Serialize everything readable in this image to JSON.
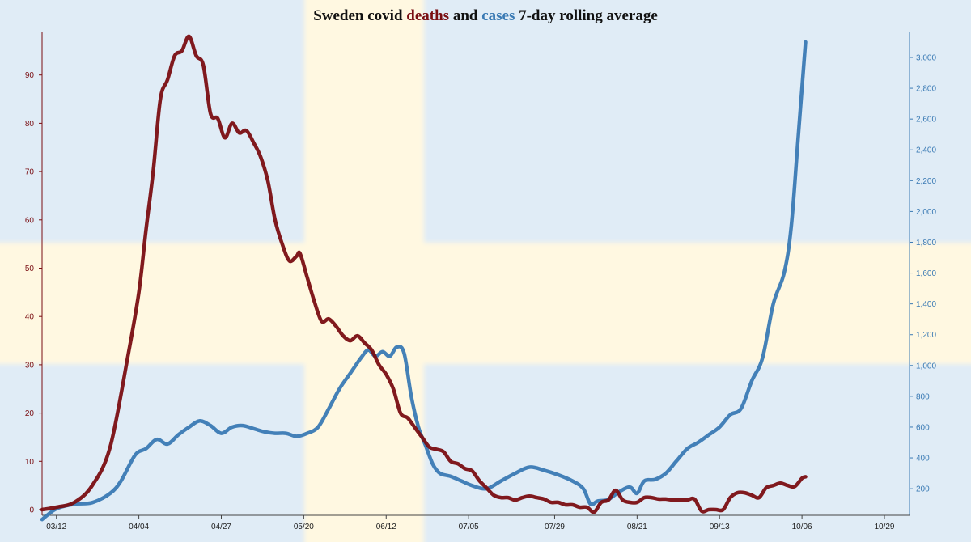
{
  "chart_data": {
    "type": "line",
    "title_parts": {
      "prefix": "Sweden covid ",
      "deaths": "deaths",
      "and": " and ",
      "cases": "cases",
      "suffix": " 7-day rolling average"
    },
    "colors": {
      "deaths": "#7a0e12",
      "cases": "#3a7ab4",
      "flag_blue": "#e0ecf6",
      "flag_yellow": "#fff8e1"
    },
    "background": "Swedish flag",
    "x_tick_labels": [
      "03/12",
      "04/04",
      "04/27",
      "05/20",
      "06/12",
      "07/05",
      "07/29",
      "08/21",
      "09/13",
      "10/06",
      "10/29"
    ],
    "x_tick_day": [
      0,
      23,
      46,
      69,
      92,
      115,
      139,
      162,
      185,
      208,
      231
    ],
    "xlim": [
      -4,
      238
    ],
    "y_left": {
      "ticks": [
        0,
        10,
        20,
        30,
        40,
        50,
        60,
        70,
        80,
        90
      ],
      "ylim": [
        0,
        99
      ]
    },
    "y_right": {
      "ticks": [
        200,
        400,
        600,
        800,
        1000,
        1200,
        1400,
        1600,
        1800,
        2000,
        2200,
        2400,
        2600,
        2800,
        3000
      ],
      "tick_labels": [
        "200",
        "400",
        "600",
        "800",
        "1,000",
        "1,200",
        "1,400",
        "1,600",
        "1,800",
        "2,000",
        "2,200",
        "2,400",
        "2,600",
        "2,800",
        "3,000"
      ],
      "ylim": [
        0,
        3200
      ]
    },
    "series": [
      {
        "axis": "left",
        "points": [
          [
            -4,
            0
          ],
          [
            0,
            0.5
          ],
          [
            5,
            1.5
          ],
          [
            10,
            5
          ],
          [
            15,
            13
          ],
          [
            20,
            32
          ],
          [
            23,
            45
          ],
          [
            25,
            58
          ],
          [
            27,
            70
          ],
          [
            29,
            85
          ],
          [
            31,
            89
          ],
          [
            33,
            94
          ],
          [
            35,
            95
          ],
          [
            37,
            98
          ],
          [
            39,
            94
          ],
          [
            41,
            92
          ],
          [
            43,
            82
          ],
          [
            45,
            81
          ],
          [
            47,
            77
          ],
          [
            49,
            80
          ],
          [
            51,
            78
          ],
          [
            53,
            78.5
          ],
          [
            55,
            76
          ],
          [
            57,
            73
          ],
          [
            59,
            68
          ],
          [
            61,
            60
          ],
          [
            63,
            55
          ],
          [
            65,
            51.5
          ],
          [
            67,
            52.5
          ],
          [
            68,
            53
          ],
          [
            70,
            48
          ],
          [
            72,
            43
          ],
          [
            74,
            39
          ],
          [
            76,
            39.5
          ],
          [
            78,
            38
          ],
          [
            80,
            36
          ],
          [
            82,
            35
          ],
          [
            84,
            36
          ],
          [
            86,
            34.5
          ],
          [
            88,
            33
          ],
          [
            90,
            30
          ],
          [
            92,
            28
          ],
          [
            94,
            25
          ],
          [
            96,
            20
          ],
          [
            98,
            19
          ],
          [
            100,
            17
          ],
          [
            102,
            15
          ],
          [
            104,
            13
          ],
          [
            106,
            12.5
          ],
          [
            108,
            12
          ],
          [
            110,
            10
          ],
          [
            112,
            9.5
          ],
          [
            114,
            8.5
          ],
          [
            116,
            8
          ],
          [
            118,
            6
          ],
          [
            120,
            4.5
          ],
          [
            122,
            3
          ],
          [
            124,
            2.5
          ],
          [
            126,
            2.5
          ],
          [
            128,
            2
          ],
          [
            130,
            2.5
          ],
          [
            132,
            2.8
          ],
          [
            134,
            2.5
          ],
          [
            136,
            2.2
          ],
          [
            138,
            1.5
          ],
          [
            140,
            1.5
          ],
          [
            142,
            1
          ],
          [
            144,
            1
          ],
          [
            146,
            0.5
          ],
          [
            148,
            0.5
          ],
          [
            150,
            -0.5
          ],
          [
            152,
            1.5
          ],
          [
            154,
            2
          ],
          [
            156,
            4
          ],
          [
            158,
            2
          ],
          [
            160,
            1.5
          ],
          [
            162,
            1.5
          ],
          [
            164,
            2.5
          ],
          [
            166,
            2.5
          ],
          [
            168,
            2.2
          ],
          [
            170,
            2.2
          ],
          [
            172,
            2
          ],
          [
            174,
            2
          ],
          [
            176,
            2
          ],
          [
            178,
            2.2
          ],
          [
            180,
            -0.3
          ],
          [
            182,
            0
          ],
          [
            184,
            0
          ],
          [
            186,
            0
          ],
          [
            188,
            2.5
          ],
          [
            190,
            3.5
          ],
          [
            192,
            3.5
          ],
          [
            194,
            3
          ],
          [
            196,
            2.5
          ],
          [
            198,
            4.5
          ],
          [
            200,
            5
          ],
          [
            202,
            5.5
          ],
          [
            204,
            5
          ],
          [
            206,
            4.8
          ],
          [
            208,
            6.5
          ],
          [
            209,
            6.8
          ]
        ]
      },
      {
        "axis": "right",
        "points": [
          [
            -4,
            0
          ],
          [
            0,
            70
          ],
          [
            5,
            100
          ],
          [
            10,
            110
          ],
          [
            15,
            170
          ],
          [
            18,
            250
          ],
          [
            22,
            420
          ],
          [
            25,
            460
          ],
          [
            28,
            520
          ],
          [
            31,
            490
          ],
          [
            34,
            550
          ],
          [
            37,
            600
          ],
          [
            40,
            640
          ],
          [
            43,
            610
          ],
          [
            46,
            560
          ],
          [
            49,
            600
          ],
          [
            52,
            610
          ],
          [
            55,
            590
          ],
          [
            58,
            570
          ],
          [
            61,
            560
          ],
          [
            64,
            560
          ],
          [
            67,
            540
          ],
          [
            70,
            560
          ],
          [
            73,
            600
          ],
          [
            76,
            720
          ],
          [
            79,
            850
          ],
          [
            82,
            950
          ],
          [
            85,
            1050
          ],
          [
            87,
            1100
          ],
          [
            89,
            1060
          ],
          [
            91,
            1090
          ],
          [
            93,
            1060
          ],
          [
            95,
            1120
          ],
          [
            97,
            1080
          ],
          [
            99,
            800
          ],
          [
            101,
            600
          ],
          [
            103,
            480
          ],
          [
            105,
            360
          ],
          [
            107,
            300
          ],
          [
            110,
            280
          ],
          [
            113,
            250
          ],
          [
            116,
            220
          ],
          [
            120,
            200
          ],
          [
            124,
            250
          ],
          [
            128,
            300
          ],
          [
            132,
            340
          ],
          [
            136,
            320
          ],
          [
            140,
            290
          ],
          [
            144,
            250
          ],
          [
            147,
            200
          ],
          [
            149,
            100
          ],
          [
            151,
            120
          ],
          [
            154,
            130
          ],
          [
            157,
            180
          ],
          [
            160,
            210
          ],
          [
            162,
            170
          ],
          [
            164,
            250
          ],
          [
            167,
            260
          ],
          [
            170,
            300
          ],
          [
            173,
            380
          ],
          [
            176,
            460
          ],
          [
            179,
            500
          ],
          [
            182,
            550
          ],
          [
            185,
            600
          ],
          [
            188,
            680
          ],
          [
            191,
            720
          ],
          [
            194,
            900
          ],
          [
            197,
            1050
          ],
          [
            200,
            1400
          ],
          [
            203,
            1600
          ],
          [
            205,
            1900
          ],
          [
            207,
            2500
          ],
          [
            209,
            3100
          ]
        ]
      }
    ]
  }
}
